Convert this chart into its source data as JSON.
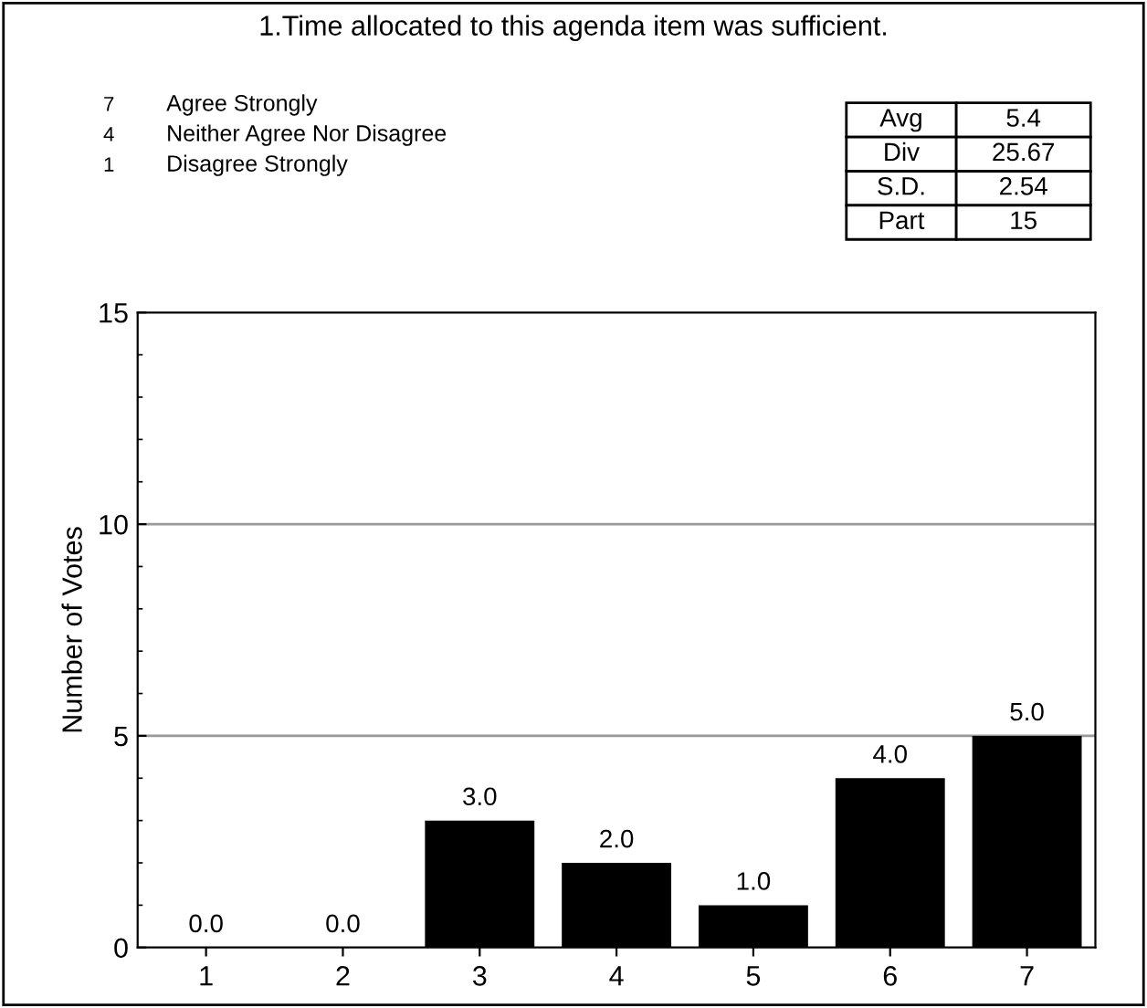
{
  "chart_data": {
    "type": "bar",
    "title": "1.Time allocated to this agenda item was sufficient.",
    "ylabel": "Number of Votes",
    "categories": [
      "1",
      "2",
      "3",
      "4",
      "5",
      "6",
      "7"
    ],
    "values": [
      0,
      0,
      3,
      2,
      1,
      4,
      5
    ],
    "value_labels": [
      "0.0",
      "0.0",
      "3.0",
      "2.0",
      "1.0",
      "4.0",
      "5.0"
    ],
    "color": "#000000",
    "ylim": [
      0,
      15
    ],
    "yticks": [
      0,
      5,
      10,
      15
    ],
    "grid": "y",
    "legend": false,
    "annotations": [
      "7",
      "Agree Strongly",
      "4",
      "Neither Agree Nor Disagree",
      "1",
      "Disagree Strongly",
      "Avg",
      "5.4",
      "Div",
      "25.67",
      "S.D.",
      "2.54",
      "Part",
      "15"
    ]
  }
}
